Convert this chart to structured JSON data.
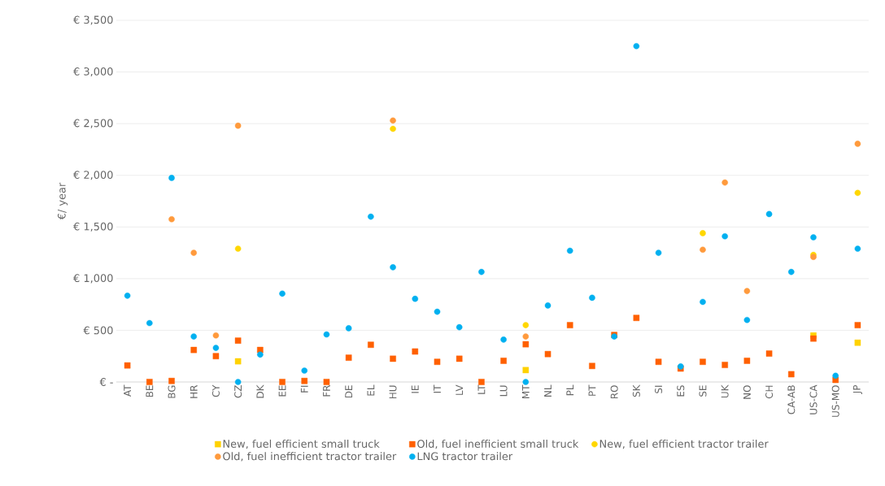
{
  "chart_data": {
    "type": "scatter",
    "ylabel": "€/ year",
    "categories": [
      "AT",
      "BE",
      "BG",
      "HR",
      "CY",
      "CZ",
      "DK",
      "EE",
      "FI",
      "FR",
      "DE",
      "EL",
      "HU",
      "IE",
      "IT",
      "LV",
      "LT",
      "LU",
      "MT",
      "NL",
      "PL",
      "PT",
      "RO",
      "SK",
      "SI",
      "ES",
      "SE",
      "UK",
      "NO",
      "CH",
      "CA-AB",
      "US-CA",
      "US-MO",
      "JP"
    ],
    "ylim": [
      0,
      3500
    ],
    "yticks": [
      {
        "value": 0,
        "label": "€ -"
      },
      {
        "value": 500,
        "label": "€ 500"
      },
      {
        "value": 1000,
        "label": "€ 1,000"
      },
      {
        "value": 1500,
        "label": "€ 1,500"
      },
      {
        "value": 2000,
        "label": "€ 2,000"
      },
      {
        "value": 2500,
        "label": "€ 2,500"
      },
      {
        "value": 3000,
        "label": "€ 3,000"
      },
      {
        "value": 3500,
        "label": "€ 3,500"
      }
    ],
    "grid": "y",
    "legend": "bottom",
    "series": [
      {
        "name": "New, fuel efficient small truck",
        "color": "#ffd200",
        "marker": "square",
        "values": [
          null,
          null,
          null,
          null,
          null,
          200,
          null,
          null,
          null,
          null,
          null,
          null,
          null,
          null,
          null,
          null,
          null,
          null,
          115,
          null,
          null,
          null,
          null,
          null,
          null,
          null,
          null,
          null,
          null,
          null,
          null,
          450,
          null,
          380
        ]
      },
      {
        "name": "Old, fuel inefficient small truck",
        "color": "#ff6000",
        "marker": "square",
        "values": [
          160,
          0,
          10,
          310,
          250,
          400,
          310,
          0,
          10,
          0,
          235,
          360,
          225,
          295,
          195,
          225,
          0,
          205,
          365,
          270,
          550,
          155,
          455,
          620,
          195,
          130,
          195,
          165,
          205,
          275,
          75,
          420,
          20,
          550
        ]
      },
      {
        "name": "New, fuel efficient tractor trailer",
        "color": "#ffd700",
        "marker": "circle",
        "values": [
          null,
          null,
          null,
          null,
          null,
          1290,
          null,
          null,
          null,
          null,
          null,
          null,
          2450,
          null,
          null,
          null,
          null,
          null,
          550,
          null,
          null,
          null,
          null,
          null,
          null,
          null,
          1440,
          null,
          null,
          null,
          null,
          1230,
          null,
          1830
        ]
      },
      {
        "name": "Old, fuel inefficient tractor trailer",
        "color": "#ff9a3c",
        "marker": "circle",
        "values": [
          null,
          null,
          1575,
          1250,
          450,
          2480,
          null,
          null,
          null,
          null,
          null,
          null,
          2530,
          null,
          null,
          null,
          null,
          null,
          440,
          null,
          null,
          null,
          null,
          null,
          null,
          null,
          1280,
          1930,
          880,
          null,
          null,
          1210,
          null,
          2305
        ]
      },
      {
        "name": "LNG tractor trailer",
        "color": "#00b0f0",
        "marker": "circle",
        "values": [
          835,
          570,
          1975,
          440,
          330,
          0,
          265,
          855,
          110,
          460,
          520,
          1600,
          1110,
          805,
          680,
          530,
          1065,
          410,
          0,
          740,
          1270,
          815,
          440,
          3250,
          1250,
          150,
          775,
          1410,
          600,
          1625,
          1065,
          1400,
          60,
          1290
        ]
      }
    ]
  }
}
